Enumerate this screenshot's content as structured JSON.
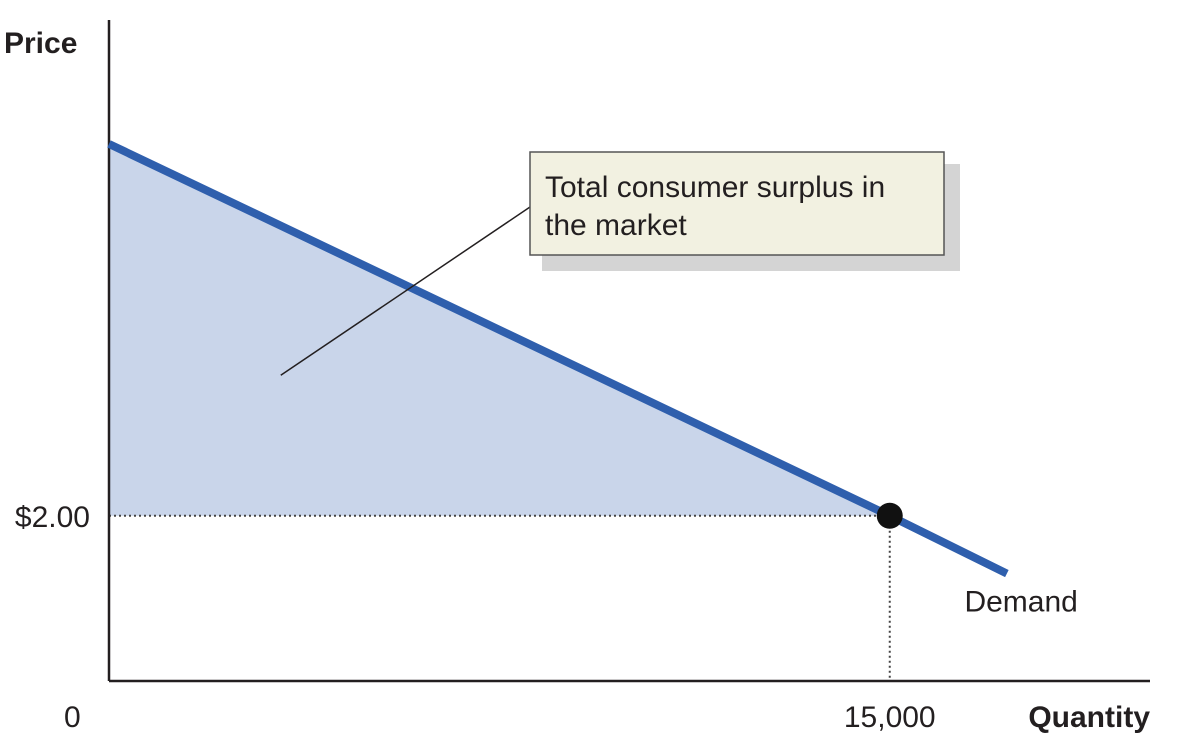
{
  "chart_data": {
    "type": "line",
    "title": "",
    "xlabel": "Quantity",
    "ylabel": "Price",
    "origin_label": "0",
    "x_ticks": [
      {
        "value": 15000,
        "label": "15,000"
      }
    ],
    "y_ticks": [
      {
        "value": 2.0,
        "label": "$2.00"
      }
    ],
    "xlim": [
      0,
      20000
    ],
    "ylim": [
      0,
      8
    ],
    "grid": false,
    "series": [
      {
        "name": "Demand",
        "points": [
          [
            0,
            6.5
          ],
          [
            15000,
            2.0
          ],
          [
            17250,
            1.3
          ]
        ],
        "color": "#2f5fad"
      }
    ],
    "equilibrium": {
      "x": 15000,
      "y": 2.0
    },
    "shaded_region": {
      "fill": "#c9d5ea"
    },
    "annotation": {
      "lines": [
        "Total consumer surplus in",
        "the market"
      ],
      "anchor": {
        "x": 3300,
        "y": 3.7
      }
    },
    "colors": {
      "demand": "#2f5fad",
      "shade": "#c9d5ea",
      "axis": "#231f20",
      "callout_bg": "#f2f1e1",
      "callout_shadow": "#d4d4d4"
    }
  }
}
